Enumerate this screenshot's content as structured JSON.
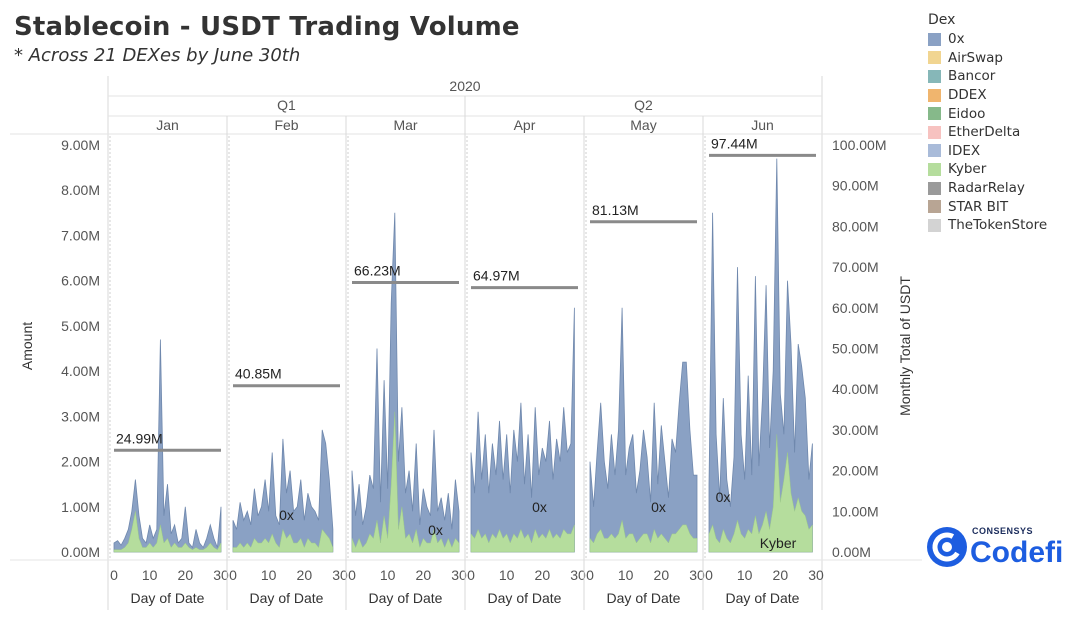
{
  "header": {
    "title": "Stablecoin - USDT Trading Volume",
    "subtitle": "*  Across 21 DEXes by June 30th"
  },
  "legend": {
    "title": "Dex",
    "items": [
      {
        "label": "0x",
        "color": "#8aa1c4"
      },
      {
        "label": "AirSwap",
        "color": "#f1d591"
      },
      {
        "label": "Bancor",
        "color": "#86b7b8"
      },
      {
        "label": "DDEX",
        "color": "#f0b56e"
      },
      {
        "label": "Eidoo",
        "color": "#86b98a"
      },
      {
        "label": "EtherDelta",
        "color": "#f7c2c0"
      },
      {
        "label": "IDEX",
        "color": "#a9bbd9"
      },
      {
        "label": "Kyber",
        "color": "#b5dd9d"
      },
      {
        "label": "RadarRelay",
        "color": "#9a9a9a"
      },
      {
        "label": "STAR BIT",
        "color": "#b8a594"
      },
      {
        "label": "TheTokenStore",
        "color": "#d3d3d3"
      }
    ]
  },
  "brand": {
    "sub": "CONSENSYS",
    "name": "Codefi"
  },
  "chart_data": {
    "type": "area",
    "year_label": "2020",
    "quarters": [
      "Q1",
      "Q2"
    ],
    "xlabel": "Day of Date",
    "ylabel": "Amount",
    "y2label": "Monthly Total of USDT",
    "ylim": [
      0,
      9000000
    ],
    "y2lim": [
      0,
      100000000
    ],
    "y_ticks": [
      "0.00M",
      "1.00M",
      "2.00M",
      "3.00M",
      "4.00M",
      "5.00M",
      "6.00M",
      "7.00M",
      "8.00M",
      "9.00M"
    ],
    "y2_ticks": [
      "0.00M",
      "10.00M",
      "20.00M",
      "30.00M",
      "40.00M",
      "50.00M",
      "60.00M",
      "70.00M",
      "80.00M",
      "90.00M",
      "100.00M"
    ],
    "x_ticks": [
      "0",
      "10",
      "20",
      "30"
    ],
    "series_colors": {
      "0x": "#8aa1c4",
      "Kyber": "#b5dd9d"
    },
    "months": [
      {
        "name": "Jan",
        "monthly_total": 24.99,
        "monthly_total_label": "24.99M",
        "area_label": "",
        "days": [
          1,
          2,
          3,
          4,
          5,
          6,
          7,
          8,
          9,
          10,
          11,
          12,
          13,
          14,
          15,
          16,
          17,
          18,
          19,
          20,
          21,
          22,
          23,
          24,
          25,
          26,
          27,
          28,
          29,
          30,
          31
        ],
        "total": [
          0.2,
          0.25,
          0.15,
          0.3,
          0.5,
          0.9,
          1.6,
          0.8,
          0.3,
          0.2,
          0.6,
          0.3,
          0.5,
          4.7,
          0.8,
          1.5,
          0.4,
          0.6,
          0.2,
          0.3,
          1.0,
          0.2,
          0.1,
          0.5,
          0.2,
          0.1,
          0.3,
          0.6,
          0.3,
          0.1,
          1.0
        ],
        "kyber": [
          0.05,
          0.05,
          0.05,
          0.1,
          0.2,
          0.5,
          0.9,
          0.3,
          0.1,
          0.1,
          0.2,
          0.1,
          0.2,
          0.6,
          0.2,
          0.3,
          0.1,
          0.2,
          0.1,
          0.1,
          0.2,
          0.1,
          0.05,
          0.1,
          0.05,
          0.05,
          0.1,
          0.2,
          0.1,
          0.05,
          0.2
        ]
      },
      {
        "name": "Feb",
        "monthly_total": 40.85,
        "monthly_total_label": "40.85M",
        "area_label": "0x",
        "days": [
          1,
          2,
          3,
          4,
          5,
          6,
          7,
          8,
          9,
          10,
          11,
          12,
          13,
          14,
          15,
          16,
          17,
          18,
          19,
          20,
          21,
          22,
          23,
          24,
          25,
          26,
          27,
          28,
          29
        ],
        "total": [
          0.7,
          0.5,
          1.1,
          0.7,
          0.9,
          0.6,
          1.4,
          0.8,
          1.0,
          1.6,
          0.9,
          2.2,
          0.8,
          0.6,
          2.5,
          1.3,
          1.8,
          0.9,
          1.0,
          1.6,
          0.7,
          1.3,
          1.0,
          0.9,
          0.7,
          2.7,
          2.4,
          1.6,
          0.5
        ],
        "kyber": [
          0.1,
          0.1,
          0.2,
          0.1,
          0.2,
          0.1,
          0.3,
          0.2,
          0.2,
          0.3,
          0.2,
          0.4,
          0.2,
          0.1,
          0.5,
          0.3,
          0.4,
          0.2,
          0.2,
          0.3,
          0.1,
          0.3,
          0.2,
          0.2,
          0.1,
          0.5,
          0.4,
          0.3,
          0.1
        ]
      },
      {
        "name": "Mar",
        "monthly_total": 66.23,
        "monthly_total_label": "66.23M",
        "area_label": "0x",
        "days": [
          1,
          2,
          3,
          4,
          5,
          6,
          7,
          8,
          9,
          10,
          11,
          12,
          13,
          14,
          15,
          16,
          17,
          18,
          19,
          20,
          21,
          22,
          23,
          24,
          25,
          26,
          27,
          28,
          29,
          30,
          31
        ],
        "total": [
          1.8,
          0.8,
          1.5,
          0.6,
          1.0,
          1.7,
          1.4,
          4.5,
          1.1,
          3.8,
          1.4,
          5.5,
          7.5,
          2.0,
          3.2,
          1.3,
          1.8,
          0.9,
          2.4,
          0.6,
          1.4,
          1.0,
          0.8,
          2.7,
          0.9,
          1.2,
          0.7,
          1.3,
          0.5,
          1.6,
          0.9
        ],
        "kyber": [
          0.3,
          0.1,
          0.3,
          0.1,
          0.2,
          0.4,
          0.3,
          0.7,
          0.2,
          0.8,
          0.3,
          1.5,
          3.1,
          0.5,
          1.0,
          0.3,
          0.4,
          0.2,
          0.5,
          0.1,
          0.3,
          0.2,
          0.2,
          0.5,
          0.2,
          0.3,
          0.1,
          0.3,
          0.1,
          0.3,
          0.2
        ]
      },
      {
        "name": "Apr",
        "monthly_total": 64.97,
        "monthly_total_label": "64.97M",
        "area_label": "0x",
        "days": [
          1,
          2,
          3,
          4,
          5,
          6,
          7,
          8,
          9,
          10,
          11,
          12,
          13,
          14,
          15,
          16,
          17,
          18,
          19,
          20,
          21,
          22,
          23,
          24,
          25,
          26,
          27,
          28,
          29,
          30
        ],
        "total": [
          2.2,
          1.3,
          3.1,
          1.6,
          2.6,
          1.3,
          2.4,
          1.7,
          2.9,
          1.6,
          2.6,
          1.3,
          2.7,
          2.0,
          3.3,
          1.5,
          2.6,
          1.2,
          3.2,
          1.7,
          2.3,
          2.0,
          2.9,
          1.6,
          2.5,
          2.0,
          3.2,
          2.2,
          2.4,
          5.4
        ],
        "kyber": [
          0.4,
          0.3,
          0.5,
          0.3,
          0.4,
          0.2,
          0.4,
          0.3,
          0.5,
          0.3,
          0.4,
          0.2,
          0.4,
          0.3,
          0.5,
          0.3,
          0.4,
          0.2,
          0.5,
          0.3,
          0.4,
          0.3,
          0.5,
          0.3,
          0.4,
          0.3,
          0.5,
          0.4,
          0.4,
          0.6
        ]
      },
      {
        "name": "May",
        "monthly_total": 81.13,
        "monthly_total_label": "81.13M",
        "area_label": "0x",
        "days": [
          1,
          2,
          3,
          4,
          5,
          6,
          7,
          8,
          9,
          10,
          11,
          12,
          13,
          14,
          15,
          16,
          17,
          18,
          19,
          20,
          21,
          22,
          23,
          24,
          25,
          26,
          27,
          28,
          29,
          30,
          31
        ],
        "total": [
          2.0,
          1.0,
          2.2,
          3.3,
          2.0,
          1.4,
          2.6,
          1.7,
          2.7,
          5.4,
          1.7,
          2.3,
          2.6,
          1.3,
          1.8,
          2.7,
          2.1,
          1.1,
          3.3,
          1.5,
          2.8,
          2.0,
          1.2,
          2.5,
          2.2,
          3.3,
          4.2,
          4.2,
          2.7,
          1.7,
          1.7
        ],
        "kyber": [
          0.3,
          0.2,
          0.4,
          0.5,
          0.3,
          0.3,
          0.4,
          0.3,
          0.4,
          0.7,
          0.3,
          0.4,
          0.4,
          0.2,
          0.3,
          0.4,
          0.4,
          0.2,
          0.5,
          0.3,
          0.4,
          0.3,
          0.2,
          0.4,
          0.4,
          0.5,
          0.6,
          0.6,
          0.4,
          0.3,
          0.3
        ]
      },
      {
        "name": "Jun",
        "monthly_total": 97.44,
        "monthly_total_label": "97.44M",
        "area_label": "0x",
        "area_label_2": "Kyber",
        "days": [
          1,
          2,
          3,
          4,
          5,
          6,
          7,
          8,
          9,
          10,
          11,
          12,
          13,
          14,
          15,
          16,
          17,
          18,
          19,
          20,
          21,
          22,
          23,
          24,
          25,
          26,
          27,
          28,
          29,
          30
        ],
        "total": [
          1.5,
          7.5,
          2.6,
          1.2,
          3.4,
          1.6,
          1.0,
          2.1,
          6.3,
          2.6,
          1.6,
          3.9,
          1.7,
          6.1,
          1.9,
          3.4,
          5.9,
          2.3,
          4.0,
          8.7,
          3.5,
          2.6,
          6.0,
          4.6,
          2.2,
          4.6,
          4.1,
          3.4,
          1.6,
          2.4
        ],
        "kyber": [
          0.4,
          0.6,
          0.3,
          0.2,
          0.5,
          0.3,
          0.2,
          0.4,
          0.7,
          0.4,
          0.3,
          0.5,
          0.4,
          0.8,
          0.4,
          0.6,
          0.9,
          0.5,
          1.0,
          2.6,
          1.1,
          1.6,
          2.2,
          1.3,
          0.9,
          1.2,
          0.9,
          0.8,
          0.5,
          0.6
        ]
      }
    ]
  }
}
